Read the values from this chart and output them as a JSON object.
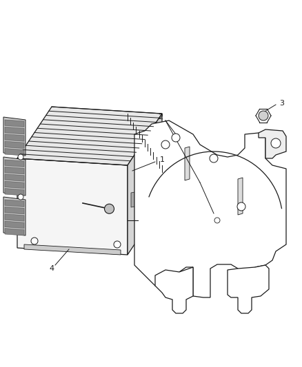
{
  "bg_color": "#ffffff",
  "line_color": "#1a1a1a",
  "fig_w": 4.39,
  "fig_h": 5.33,
  "dpi": 100,
  "lw": 0.9,
  "face_light": "#f5f5f5",
  "face_mid": "#e8e8e8",
  "face_dark": "#d5d5d5",
  "face_darker": "#c0c0c0"
}
